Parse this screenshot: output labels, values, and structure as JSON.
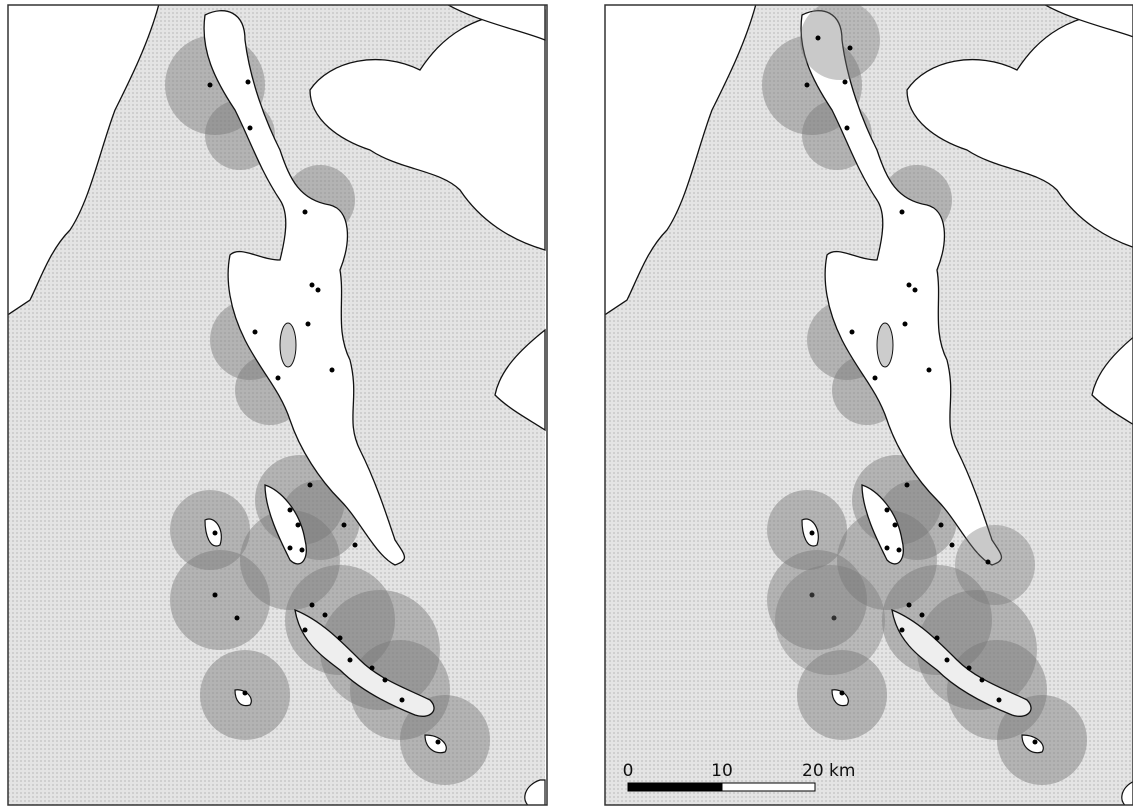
{
  "scale_bar": {
    "labels": [
      "0",
      "10",
      "20 km"
    ]
  }
}
